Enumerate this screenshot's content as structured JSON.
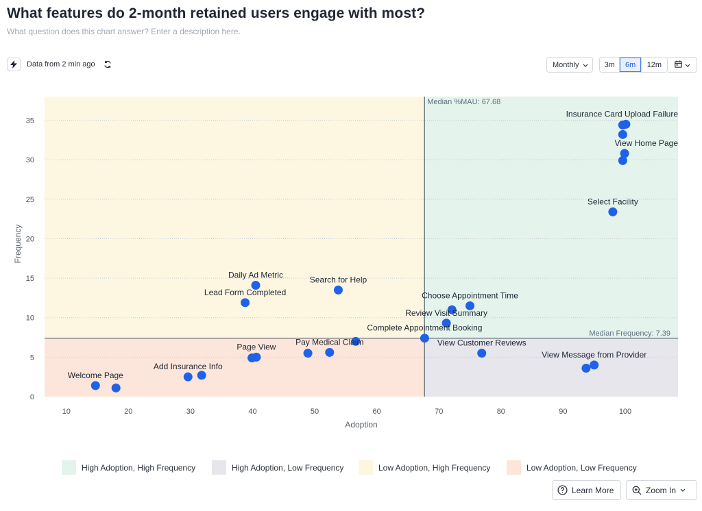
{
  "header": {
    "title": "What features do 2-month retained users engage with most?",
    "description_placeholder": "What question does this chart answer? Enter a description here."
  },
  "toolbar": {
    "freshness": "Data from 2 min ago",
    "interval": "Monthly",
    "ranges": [
      "3m",
      "6m",
      "12m"
    ],
    "active_range": "6m"
  },
  "footer": {
    "learn_more": "Learn More",
    "zoom_in": "Zoom In"
  },
  "chart_data": {
    "type": "scatter",
    "xlabel": "Adoption",
    "ylabel": "Frequency",
    "xlim": [
      6.5,
      108.5
    ],
    "ylim": [
      0,
      38
    ],
    "xticks": [
      10,
      20,
      30,
      40,
      50,
      60,
      70,
      80,
      90,
      100
    ],
    "yticks": [
      0,
      5,
      10,
      15,
      20,
      25,
      30,
      35
    ],
    "grid": true,
    "medians": {
      "x": 67.68,
      "x_label": "Median %MAU: 67.68",
      "y": 7.39,
      "y_label": "Median Frequency: 7.39"
    },
    "quadrants": [
      {
        "label": "High Adoption, High Frequency",
        "color": "#e4f3ec"
      },
      {
        "label": "High Adoption, Low Frequency",
        "color": "#e6e6ec"
      },
      {
        "label": "Low Adoption, High Frequency",
        "color": "#fdf6e1"
      },
      {
        "label": "Low Adoption, Low Frequency",
        "color": "#fce5da"
      }
    ],
    "point_color": "#1f62e8",
    "points": [
      {
        "x": 14.7,
        "y": 1.4,
        "label": "Welcome Page"
      },
      {
        "x": 18.0,
        "y": 1.1,
        "label": ""
      },
      {
        "x": 29.6,
        "y": 2.5,
        "label": "Add Insurance Info"
      },
      {
        "x": 31.8,
        "y": 2.7,
        "label": ""
      },
      {
        "x": 39.9,
        "y": 4.9,
        "label": ""
      },
      {
        "x": 40.6,
        "y": 5.0,
        "label": "Page View"
      },
      {
        "x": 48.9,
        "y": 5.5,
        "label": ""
      },
      {
        "x": 52.4,
        "y": 5.6,
        "label": "Pay Medical Claim"
      },
      {
        "x": 56.6,
        "y": 7.0,
        "label": ""
      },
      {
        "x": 67.7,
        "y": 7.4,
        "label": "Complete Appointment Booking"
      },
      {
        "x": 38.8,
        "y": 11.9,
        "label": "Lead Form Completed"
      },
      {
        "x": 40.5,
        "y": 14.1,
        "label": "Daily Ad Metric"
      },
      {
        "x": 53.8,
        "y": 13.5,
        "label": "Search for Help"
      },
      {
        "x": 71.2,
        "y": 9.3,
        "label": "Review Visit Summary"
      },
      {
        "x": 72.1,
        "y": 11.0,
        "label": ""
      },
      {
        "x": 75.0,
        "y": 11.5,
        "label": "Choose Appointment Time"
      },
      {
        "x": 76.9,
        "y": 5.5,
        "label": "View Customer Reviews"
      },
      {
        "x": 93.7,
        "y": 3.6,
        "label": ""
      },
      {
        "x": 95.0,
        "y": 4.0,
        "label": "View Message from Provider"
      },
      {
        "x": 98.0,
        "y": 23.4,
        "label": "Select Facility"
      },
      {
        "x": 99.6,
        "y": 29.9,
        "label": ""
      },
      {
        "x": 99.9,
        "y": 30.8,
        "label": "View Home Page"
      },
      {
        "x": 99.6,
        "y": 33.2,
        "label": ""
      },
      {
        "x": 99.6,
        "y": 34.4,
        "label": ""
      },
      {
        "x": 100.1,
        "y": 34.5,
        "label": "Insurance Card Upload Failure"
      }
    ]
  }
}
